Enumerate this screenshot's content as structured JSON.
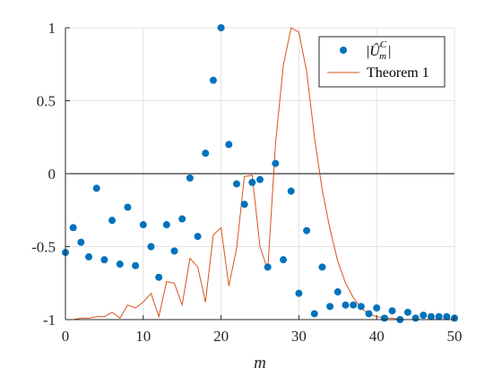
{
  "chart_data": {
    "type": "scatter",
    "xlabel": "m",
    "ylabel": "",
    "xlim": [
      0,
      50
    ],
    "ylim": [
      -1,
      1
    ],
    "x_ticks": [
      0,
      10,
      20,
      30,
      40,
      50
    ],
    "y_ticks": [
      -1,
      -0.5,
      0,
      0.5,
      1
    ],
    "x_tick_labels": [
      "0",
      "10",
      "20",
      "30",
      "40",
      "50"
    ],
    "y_tick_labels": [
      "-1",
      "-0.5",
      "0",
      "0.5",
      "1"
    ],
    "grid": true,
    "zero_line": true,
    "legend_position": "top-right",
    "series": [
      {
        "name": "|Û_m^C|",
        "kind": "markers",
        "color": "#0072BD",
        "x": [
          0,
          1,
          2,
          3,
          4,
          5,
          6,
          7,
          8,
          9,
          10,
          11,
          12,
          13,
          14,
          15,
          16,
          17,
          18,
          19,
          20,
          21,
          22,
          23,
          24,
          25,
          26,
          27,
          28,
          29,
          30,
          31,
          32,
          33,
          34,
          35,
          36,
          37,
          38,
          39,
          40,
          41,
          42,
          43,
          44,
          45,
          46,
          47,
          48,
          49,
          50
        ],
        "y": [
          -0.54,
          -0.37,
          -0.47,
          -0.57,
          -0.1,
          -0.59,
          -0.32,
          -0.62,
          -0.23,
          -0.63,
          -0.35,
          -0.5,
          -0.71,
          -0.35,
          -0.53,
          -0.31,
          -0.03,
          -0.43,
          0.14,
          0.64,
          1.0,
          0.2,
          -0.07,
          -0.21,
          -0.06,
          -0.04,
          -0.64,
          0.07,
          -0.59,
          -0.12,
          -0.82,
          -0.39,
          -0.96,
          -0.64,
          -0.91,
          -0.81,
          -0.9,
          -0.9,
          -0.91,
          -0.96,
          -0.92,
          -0.99,
          -0.94,
          -1.0,
          -0.95,
          -0.99,
          -0.97,
          -0.98,
          -0.98,
          -0.98,
          -0.99
        ]
      },
      {
        "name": "Theorem 1",
        "kind": "line",
        "color": "#D95319",
        "x": [
          0,
          1,
          2,
          3,
          4,
          5,
          6,
          7,
          8,
          9,
          10,
          11,
          12,
          13,
          14,
          15,
          16,
          17,
          18,
          19,
          20,
          21,
          22,
          23,
          24,
          25,
          26,
          27,
          28,
          29,
          30,
          31,
          32,
          33,
          34,
          35,
          36,
          37,
          38,
          39,
          40,
          41,
          42,
          43,
          44,
          45,
          46,
          47,
          48,
          49,
          50
        ],
        "y": [
          -1.0,
          -1.0,
          -0.99,
          -0.99,
          -0.98,
          -0.98,
          -0.95,
          -0.99,
          -0.9,
          -0.92,
          -0.88,
          -0.82,
          -0.98,
          -0.74,
          -0.75,
          -0.9,
          -0.58,
          -0.64,
          -0.88,
          -0.42,
          -0.37,
          -0.77,
          -0.51,
          -0.02,
          -0.01,
          -0.5,
          -0.66,
          0.21,
          0.74,
          1.0,
          0.97,
          0.7,
          0.25,
          -0.11,
          -0.38,
          -0.6,
          -0.75,
          -0.85,
          -0.92,
          -0.96,
          -0.98,
          -0.99,
          -0.99,
          -1.0,
          -1.0,
          -1.0,
          -1.0,
          -1.0,
          -1.0,
          -1.0,
          -1.0
        ]
      }
    ]
  }
}
